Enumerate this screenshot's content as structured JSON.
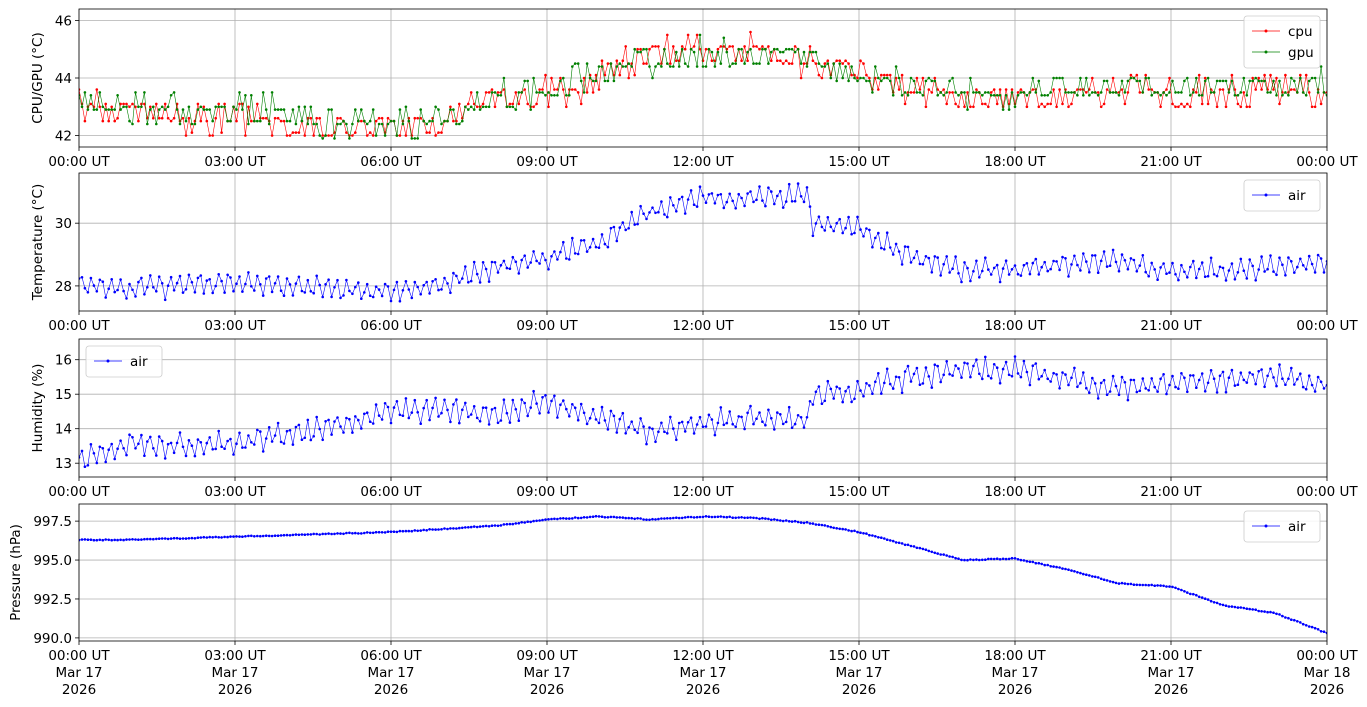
{
  "chart_data": [
    {
      "type": "line",
      "ylabel": "CPU/GPU (°C)",
      "ylim": [
        41.6,
        46.4
      ],
      "yticks": [
        42,
        44,
        46
      ],
      "xlim_hours": [
        0,
        24
      ],
      "xtick_labels": [
        "00:00 UT",
        "03:00 UT",
        "06:00 UT",
        "09:00 UT",
        "12:00 UT",
        "15:00 UT",
        "18:00 UT",
        "21:00 UT",
        "00:00 UT"
      ],
      "grid": true,
      "legend": "top-right",
      "series": [
        {
          "name": "cpu",
          "color": "#ff0000",
          "x": [
            0,
            1,
            2,
            3,
            4,
            5,
            6,
            7,
            7.5,
            8,
            9,
            9.5,
            10,
            11,
            12,
            13,
            14,
            15,
            16,
            17,
            18,
            19,
            20,
            21,
            22,
            23,
            24
          ],
          "y": [
            43.0,
            42.9,
            42.5,
            42.6,
            42.3,
            42.2,
            42.3,
            42.4,
            42.9,
            43.2,
            43.4,
            43.5,
            44.0,
            44.8,
            45.0,
            44.9,
            44.6,
            44.1,
            43.5,
            43.3,
            43.2,
            43.3,
            43.5,
            43.4,
            43.5,
            43.6,
            43.3
          ]
        },
        {
          "name": "gpu",
          "color": "#008000",
          "x": [
            0,
            1,
            2,
            3,
            4,
            5,
            6,
            7,
            7.5,
            8,
            9,
            9.5,
            10,
            11,
            12,
            13,
            14,
            15,
            16,
            17,
            18,
            19,
            20,
            21,
            22,
            23,
            24
          ],
          "y": [
            43.2,
            43.1,
            43.0,
            43.0,
            42.8,
            42.5,
            42.5,
            42.7,
            43.0,
            43.4,
            43.6,
            44.0,
            44.2,
            44.6,
            44.9,
            44.9,
            44.7,
            44.2,
            43.8,
            43.6,
            43.5,
            43.6,
            43.8,
            43.7,
            43.8,
            43.9,
            43.8
          ]
        }
      ]
    },
    {
      "type": "line",
      "ylabel": "Temperature (°C)",
      "ylim": [
        27.2,
        31.6
      ],
      "yticks": [
        28,
        30
      ],
      "xlim_hours": [
        0,
        24
      ],
      "xtick_labels": [
        "00:00 UT",
        "03:00 UT",
        "06:00 UT",
        "09:00 UT",
        "12:00 UT",
        "15:00 UT",
        "18:00 UT",
        "21:00 UT",
        "00:00 UT"
      ],
      "grid": true,
      "legend": "top-right",
      "series": [
        {
          "name": "air",
          "color": "#0000ff",
          "x": [
            0,
            1,
            2,
            3,
            4,
            5,
            6,
            7,
            8,
            9,
            10,
            11,
            12,
            13,
            14,
            14.1,
            15,
            16,
            17,
            18,
            19,
            20,
            21,
            22,
            23,
            24
          ],
          "y": [
            28.1,
            27.9,
            28.0,
            28.1,
            28.0,
            27.9,
            27.8,
            28.1,
            28.6,
            28.9,
            29.4,
            30.4,
            30.8,
            30.8,
            30.9,
            30.0,
            29.8,
            28.9,
            28.5,
            28.5,
            28.7,
            28.8,
            28.5,
            28.5,
            28.6,
            28.8
          ]
        }
      ]
    },
    {
      "type": "line",
      "ylabel": "Humidity (%)",
      "ylim": [
        12.6,
        16.6
      ],
      "yticks": [
        13,
        14,
        15,
        16
      ],
      "xlim_hours": [
        0,
        24
      ],
      "xtick_labels": [
        "00:00 UT",
        "03:00 UT",
        "06:00 UT",
        "09:00 UT",
        "12:00 UT",
        "15:00 UT",
        "18:00 UT",
        "21:00 UT",
        "00:00 UT"
      ],
      "grid": true,
      "legend": "top-left",
      "series": [
        {
          "name": "air",
          "color": "#0000ff",
          "x": [
            0,
            1,
            2,
            3,
            4,
            5,
            6,
            7,
            8,
            9,
            10,
            11,
            12,
            13,
            14,
            14.1,
            15,
            16,
            17,
            18,
            19,
            20,
            21,
            22,
            23,
            24
          ],
          "y": [
            13.1,
            13.6,
            13.5,
            13.6,
            13.8,
            14.1,
            14.5,
            14.6,
            14.4,
            14.8,
            14.3,
            13.9,
            14.2,
            14.3,
            14.2,
            15.0,
            15.1,
            15.5,
            15.7,
            15.7,
            15.4,
            15.2,
            15.3,
            15.4,
            15.5,
            15.3
          ]
        }
      ]
    },
    {
      "type": "line",
      "ylabel": "Pressure (hPa)",
      "ylim": [
        989.8,
        998.6
      ],
      "yticks": [
        990.0,
        992.5,
        995.0,
        997.5
      ],
      "ytick_labels": [
        "990.0",
        "992.5",
        "995.0",
        "997.5"
      ],
      "xlim_hours": [
        0,
        24
      ],
      "xtick_labels": [
        "00:00 UT\nMar 17\n2026",
        "03:00 UT\nMar 17\n2026",
        "06:00 UT\nMar 17\n2026",
        "09:00 UT\nMar 17\n2026",
        "12:00 UT\nMar 17\n2026",
        "15:00 UT\nMar 17\n2026",
        "18:00 UT\nMar 17\n2026",
        "21:00 UT\nMar 17\n2026",
        "00:00 UT\nMar 18\n2026"
      ],
      "grid": true,
      "legend": "top-right",
      "series": [
        {
          "name": "air",
          "color": "#0000ff",
          "x": [
            0,
            1,
            2,
            3,
            4,
            5,
            6,
            7,
            8,
            9,
            10,
            11,
            12,
            13,
            14,
            15,
            16,
            17,
            18,
            19,
            20,
            21,
            22,
            23,
            24
          ],
          "y": [
            996.3,
            996.3,
            996.4,
            996.5,
            996.6,
            996.7,
            996.8,
            997.0,
            997.2,
            997.6,
            997.8,
            997.6,
            997.8,
            997.7,
            997.4,
            996.8,
            995.9,
            995.0,
            995.1,
            994.4,
            993.5,
            993.3,
            992.1,
            991.6,
            990.3
          ]
        }
      ]
    }
  ]
}
